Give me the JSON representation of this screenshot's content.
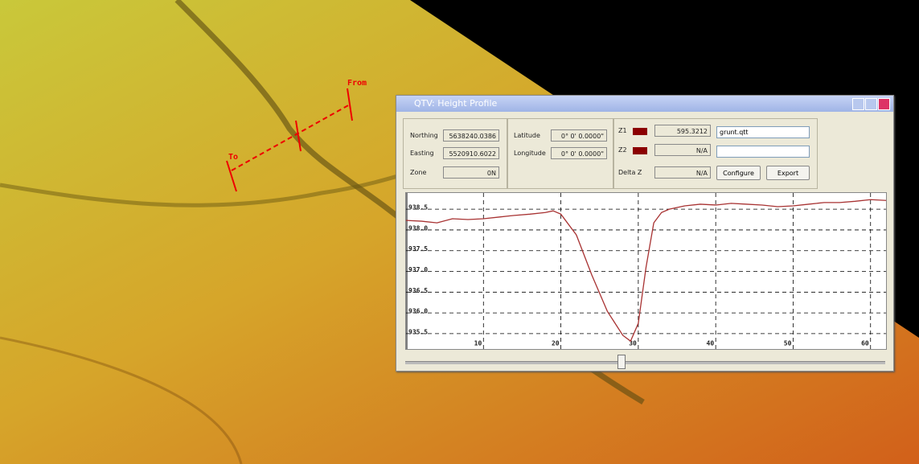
{
  "map": {
    "from": "From",
    "to": "To"
  },
  "window": {
    "title": "QTV: Height Profile"
  },
  "fields": [
    {
      "label": "Northing",
      "value": "5638240.0386"
    },
    {
      "label": "Easting",
      "value": "5520910.6022"
    },
    {
      "label": "Zone",
      "value": "0N"
    },
    {
      "label": "Latitude",
      "value": "0° 0' 0.0000\""
    },
    {
      "label": "Longitude",
      "value": "0° 0' 0.0000\""
    },
    {
      "label": "Z1",
      "value": "595.3212"
    },
    {
      "label": "Z2",
      "value": "N/A"
    },
    {
      "label": "Delta Z",
      "value": "N/A"
    }
  ],
  "dropdown": "grunt.qtt",
  "buttons": [
    "Configure",
    "Export"
  ],
  "chart_data": {
    "type": "line",
    "x": [
      0,
      2,
      4,
      6,
      8,
      10,
      12,
      14,
      16,
      18,
      19,
      20,
      22,
      24,
      26,
      28,
      29,
      30,
      31,
      32,
      33,
      34,
      36,
      38,
      40,
      42,
      44,
      46,
      48,
      50,
      52,
      54,
      56,
      58,
      60,
      62
    ],
    "series": [
      {
        "color": "#a83232",
        "values": [
          938.23,
          938.21,
          938.17,
          938.27,
          938.25,
          938.27,
          938.31,
          938.35,
          938.38,
          938.42,
          938.46,
          938.38,
          937.88,
          936.91,
          936.04,
          935.46,
          935.32,
          935.75,
          937.1,
          938.17,
          938.42,
          938.5,
          938.58,
          938.62,
          938.6,
          938.64,
          938.62,
          938.6,
          938.56,
          938.58,
          938.62,
          938.66,
          938.66,
          938.69,
          938.73,
          938.71
        ]
      }
    ],
    "xlim": [
      0,
      62
    ],
    "ylim": [
      935.13,
      938.89
    ],
    "xticks": [
      10,
      20,
      30,
      40,
      50,
      60
    ],
    "yticks": [
      {
        "value": 935.5,
        "label": "935.5"
      },
      {
        "value": 936,
        "label": "936.0"
      },
      936.5,
      {
        "value": 937,
        "label": "937.0"
      },
      937.5,
      {
        "value": 938,
        "label": "938.0"
      },
      938.5
    ],
    "grid": true
  }
}
